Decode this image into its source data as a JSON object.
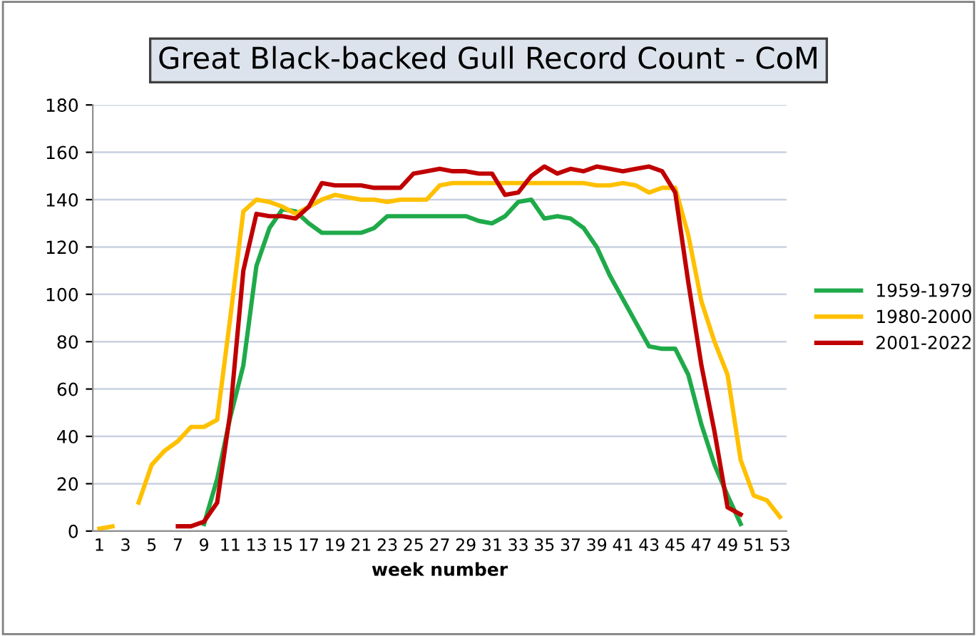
{
  "chart_data": {
    "type": "line",
    "title": "Great Black-backed Gull Record Count - CoM",
    "xlabel": "week number",
    "categories": [
      "1",
      null,
      "3",
      null,
      "5",
      null,
      "7",
      null,
      "9",
      null,
      "11",
      null,
      "13",
      null,
      "15",
      null,
      "17",
      null,
      "19",
      null,
      "21",
      null,
      "23",
      null,
      "25",
      null,
      "27",
      null,
      "29",
      null,
      "31",
      null,
      "33",
      null,
      "35",
      null,
      "37",
      null,
      "39",
      null,
      "41",
      null,
      "43",
      null,
      "45",
      null,
      "47",
      null,
      "49",
      null,
      "51",
      null,
      "53"
    ],
    "ylim": [
      0,
      180
    ],
    "yticks": [
      0,
      20,
      40,
      60,
      80,
      100,
      120,
      140,
      160,
      180
    ],
    "grid": "y",
    "legend": "right",
    "marker": "none",
    "line_style": "solid",
    "series": [
      {
        "name": "1959-1979",
        "color": "#1faa4a",
        "values": [
          null,
          null,
          null,
          null,
          null,
          null,
          null,
          null,
          3,
          22,
          48,
          70,
          112,
          128,
          136,
          135,
          130,
          126,
          126,
          126,
          126,
          128,
          133,
          133,
          133,
          133,
          133,
          133,
          133,
          131,
          130,
          133,
          139,
          140,
          132,
          133,
          132,
          128,
          120,
          108,
          98,
          88,
          78,
          77,
          77,
          66,
          45,
          28,
          15,
          3,
          null,
          null,
          null
        ]
      },
      {
        "name": "1980-2000",
        "color": "#ffc000",
        "values": [
          1,
          2,
          null,
          12,
          28,
          34,
          38,
          44,
          44,
          47,
          90,
          135,
          140,
          139,
          137,
          134,
          137,
          140,
          142,
          141,
          140,
          140,
          139,
          140,
          140,
          140,
          146,
          147,
          147,
          147,
          147,
          147,
          147,
          147,
          147,
          147,
          147,
          147,
          146,
          146,
          147,
          146,
          143,
          145,
          145,
          125,
          97,
          80,
          66,
          30,
          15,
          13,
          6
        ]
      },
      {
        "name": "2001-2022",
        "color": "#c00000",
        "values": [
          null,
          null,
          null,
          null,
          null,
          null,
          2,
          2,
          4,
          12,
          50,
          110,
          134,
          133,
          133,
          132,
          137,
          147,
          146,
          146,
          146,
          145,
          145,
          145,
          151,
          152,
          153,
          152,
          152,
          151,
          151,
          142,
          143,
          150,
          154,
          151,
          153,
          152,
          154,
          153,
          152,
          153,
          154,
          152,
          143,
          105,
          70,
          42,
          10,
          7,
          null,
          null,
          null
        ]
      }
    ]
  }
}
